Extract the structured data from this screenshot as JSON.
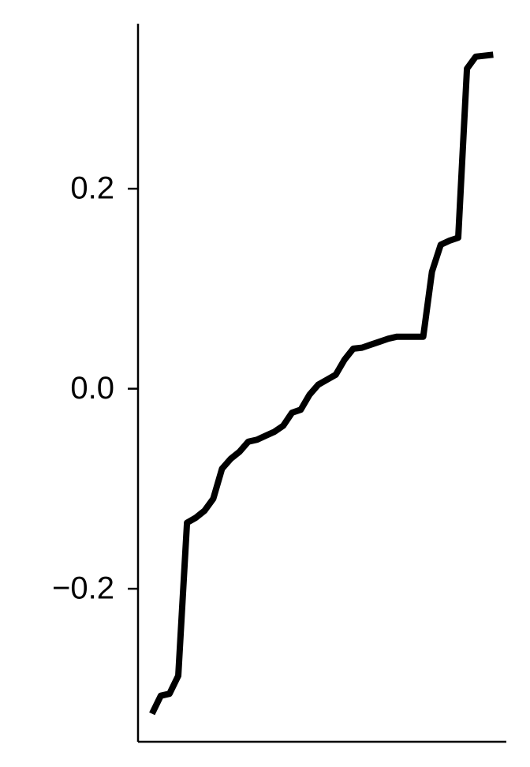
{
  "chart_data": {
    "type": "line",
    "x": [
      0,
      1,
      2,
      3,
      4,
      5,
      6,
      7,
      8,
      9,
      10,
      11,
      12,
      13,
      14,
      15,
      16,
      17,
      18,
      19,
      20,
      21,
      22,
      23,
      24,
      25,
      26,
      27,
      28,
      29,
      30,
      31,
      32,
      33,
      34,
      35,
      36,
      37,
      38,
      39
    ],
    "series": [
      {
        "color": "#000000",
        "values": [
          -0.325,
          -0.307,
          -0.305,
          -0.287,
          -0.134,
          -0.129,
          -0.122,
          -0.11,
          -0.08,
          -0.07,
          -0.063,
          -0.053,
          -0.051,
          -0.047,
          -0.043,
          -0.037,
          -0.024,
          -0.021,
          -0.006,
          0.004,
          0.009,
          0.014,
          0.029,
          0.04,
          0.041,
          0.044,
          0.047,
          0.05,
          0.052,
          0.052,
          0.052,
          0.052,
          0.117,
          0.144,
          0.148,
          0.151,
          0.32,
          0.332,
          0.333,
          0.334
        ]
      }
    ],
    "xlim": [
      -1.6,
      40.5
    ],
    "ylim": [
      -0.353,
      0.365
    ],
    "yticks": [
      {
        "value": -0.2,
        "label": "−0.2"
      },
      {
        "value": 0,
        "label": "0.0"
      },
      0.2
    ],
    "grid": false
  }
}
